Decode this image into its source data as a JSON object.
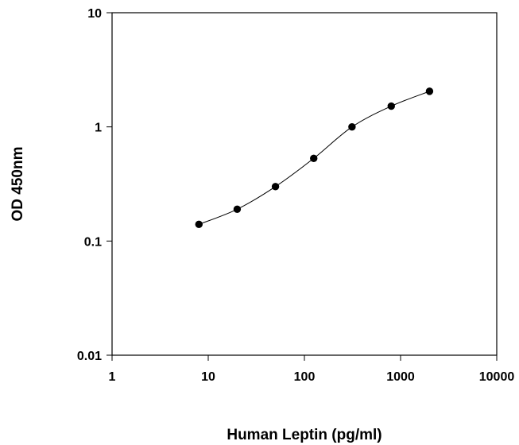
{
  "chart_data": {
    "type": "scatter",
    "title": "",
    "xlabel": "Human Leptin (pg/ml)",
    "ylabel": "OD 450nm",
    "xscale": "log",
    "yscale": "log",
    "xlim": [
      1,
      10000
    ],
    "ylim": [
      0.01,
      10
    ],
    "xticks": [
      1,
      10,
      100,
      1000,
      10000
    ],
    "xtick_labels": [
      "1",
      "10",
      "100",
      "1000",
      "10000"
    ],
    "yticks": [
      0.01,
      0.1,
      1,
      10
    ],
    "ytick_labels": [
      "0.01",
      "0.1",
      "1",
      "10"
    ],
    "grid": false,
    "connect_points": true,
    "marker": "filled-circle",
    "series": [
      {
        "x": [
          8,
          20,
          50,
          125,
          312.5,
          800,
          2000
        ],
        "y": [
          0.14,
          0.19,
          0.3,
          0.53,
          1.0,
          1.52,
          2.05
        ]
      }
    ]
  }
}
